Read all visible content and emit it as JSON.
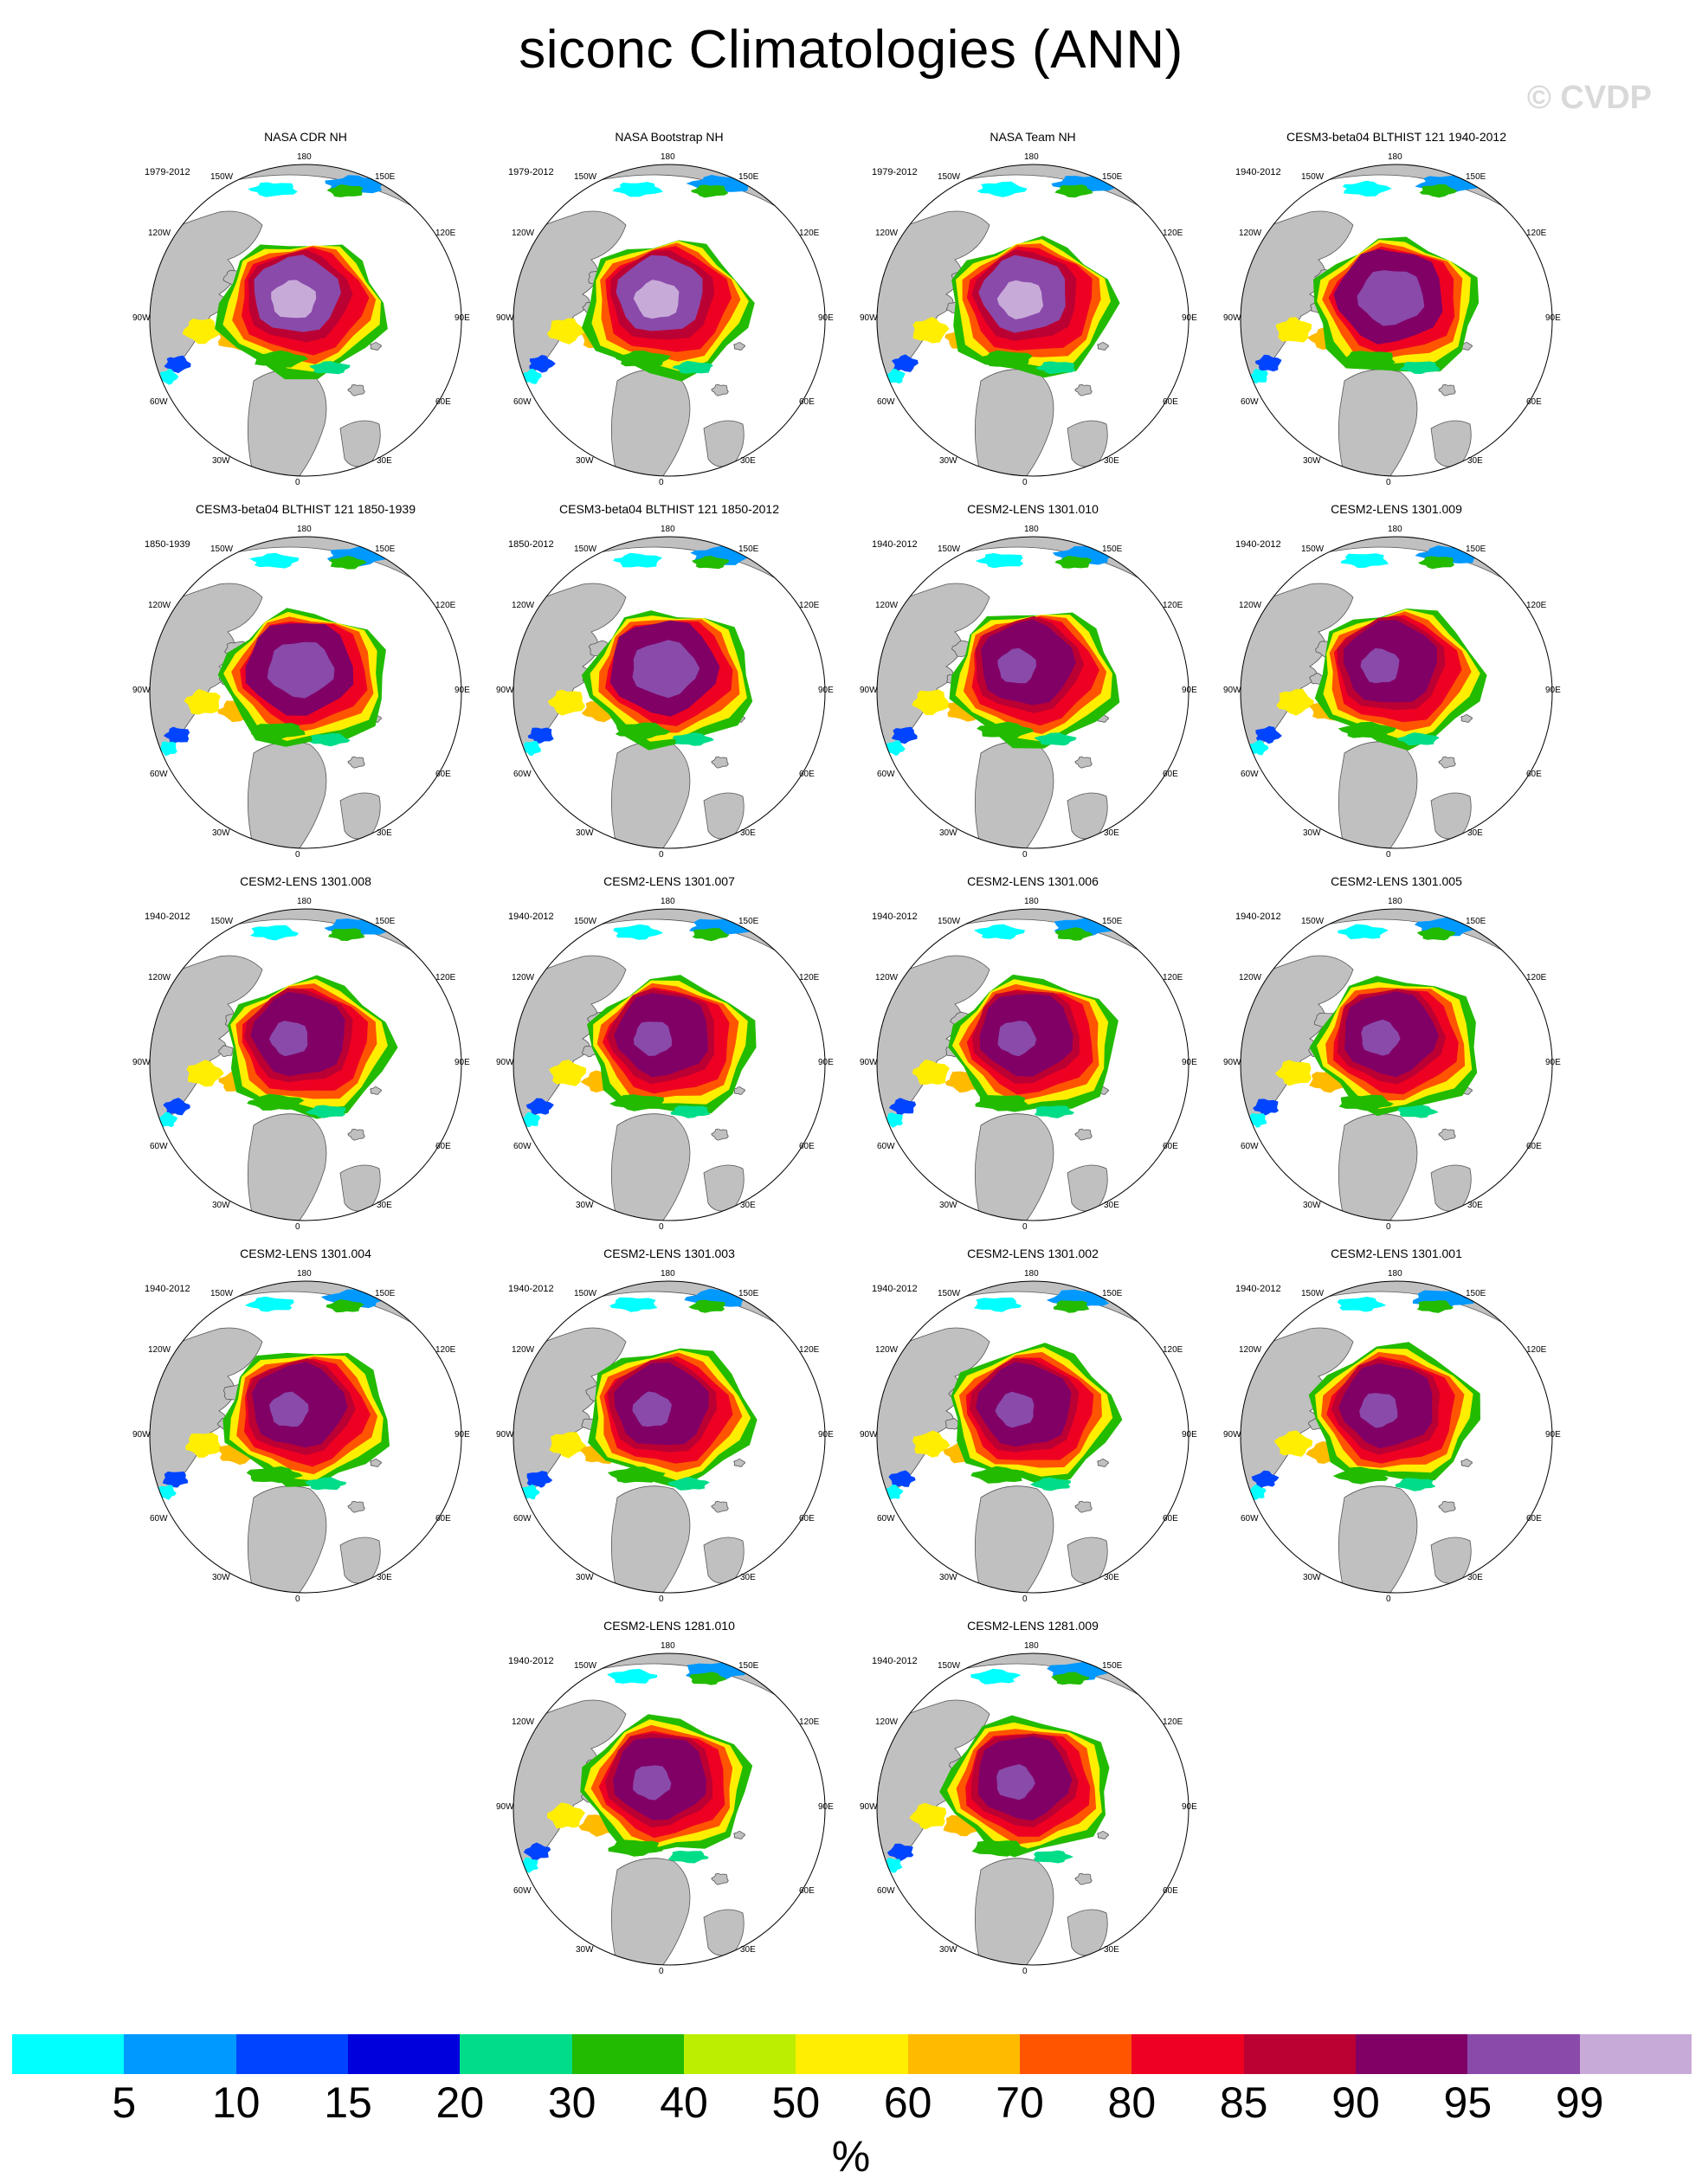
{
  "title": "siconc Climatologies (ANN)",
  "watermark": "© CVDP",
  "longitude_labels": [
    "180",
    "150E",
    "120E",
    "90E",
    "60E",
    "30E",
    "0",
    "30W",
    "60W",
    "90W",
    "120W",
    "150W"
  ],
  "panels": [
    {
      "title": "NASA CDR NH",
      "period": "1979-2012",
      "icetype": "obs"
    },
    {
      "title": "NASA Bootstrap NH",
      "period": "1979-2012",
      "icetype": "obs"
    },
    {
      "title": "NASA Team NH",
      "period": "1979-2012",
      "icetype": "obs"
    },
    {
      "title": "CESM3-beta04 BLTHIST 121 1940-2012",
      "period": "1940-2012",
      "icetype": "cesm3"
    },
    {
      "title": "CESM3-beta04 BLTHIST 121 1850-1939",
      "period": "1850-1939",
      "icetype": "cesm3"
    },
    {
      "title": "CESM3-beta04 BLTHIST 121 1850-2012",
      "period": "1850-2012",
      "icetype": "cesm3"
    },
    {
      "title": "CESM2-LENS 1301.010",
      "period": "1940-2012",
      "icetype": "lens"
    },
    {
      "title": "CESM2-LENS 1301.009",
      "period": "1940-2012",
      "icetype": "lens"
    },
    {
      "title": "CESM2-LENS 1301.008",
      "period": "1940-2012",
      "icetype": "lens"
    },
    {
      "title": "CESM2-LENS 1301.007",
      "period": "1940-2012",
      "icetype": "lens"
    },
    {
      "title": "CESM2-LENS 1301.006",
      "period": "1940-2012",
      "icetype": "lens"
    },
    {
      "title": "CESM2-LENS 1301.005",
      "period": "1940-2012",
      "icetype": "lens"
    },
    {
      "title": "CESM2-LENS 1301.004",
      "period": "1940-2012",
      "icetype": "lens"
    },
    {
      "title": "CESM2-LENS 1301.003",
      "period": "1940-2012",
      "icetype": "lens"
    },
    {
      "title": "CESM2-LENS 1301.002",
      "period": "1940-2012",
      "icetype": "lens"
    },
    {
      "title": "CESM2-LENS 1301.001",
      "period": "1940-2012",
      "icetype": "lens"
    },
    {
      "title": "CESM2-LENS 1281.010",
      "period": "1940-2012",
      "icetype": "lens"
    },
    {
      "title": "CESM2-LENS 1281.009",
      "period": "1940-2012",
      "icetype": "lens"
    }
  ],
  "colorbar": {
    "colors": [
      "#00ffff",
      "#0099ff",
      "#0044ff",
      "#0000dd",
      "#00dd88",
      "#22bb00",
      "#bbee00",
      "#ffee00",
      "#ffbb00",
      "#ff5500",
      "#ee0022",
      "#bb0033",
      "#800066",
      "#8a4aaa",
      "#c8aad8"
    ],
    "labels": [
      "5",
      "10",
      "15",
      "20",
      "30",
      "40",
      "50",
      "60",
      "70",
      "80",
      "85",
      "90",
      "95",
      "99"
    ],
    "unit": "%"
  },
  "map_colors": {
    "land": "#c0c0c0",
    "ocean": "#ffffff",
    "outline": "#555555"
  }
}
